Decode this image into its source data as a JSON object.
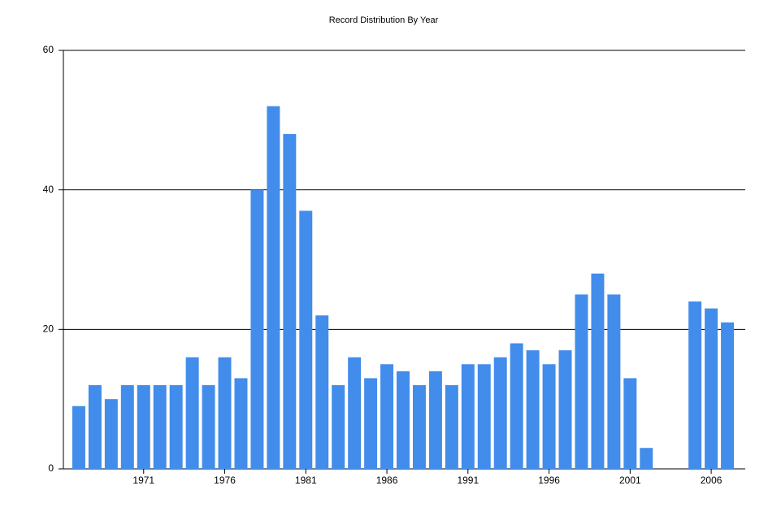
{
  "chart_data": {
    "type": "bar",
    "title": "Record Distribution By Year",
    "x": [
      1967,
      1968,
      1969,
      1970,
      1971,
      1972,
      1973,
      1974,
      1975,
      1976,
      1977,
      1978,
      1979,
      1980,
      1981,
      1982,
      1983,
      1984,
      1985,
      1986,
      1987,
      1988,
      1989,
      1990,
      1991,
      1992,
      1993,
      1994,
      1995,
      1996,
      1997,
      1998,
      1999,
      2000,
      2001,
      2002,
      2005,
      2006,
      2007
    ],
    "values": [
      9,
      12,
      10,
      12,
      12,
      12,
      12,
      16,
      12,
      16,
      13,
      40,
      52,
      48,
      37,
      22,
      12,
      16,
      13,
      15,
      14,
      12,
      14,
      12,
      15,
      15,
      16,
      18,
      17,
      15,
      17,
      25,
      28,
      25,
      13,
      3,
      24,
      23,
      21
    ],
    "color": "#428ceb",
    "xlim": [
      1966.05,
      2008.1
    ],
    "xticks": [
      1971,
      1976,
      1981,
      1986,
      1991,
      1996,
      2001,
      2006
    ],
    "ylim": [
      0,
      60
    ],
    "yticks": [
      0,
      20,
      40,
      60
    ],
    "grid": true
  }
}
